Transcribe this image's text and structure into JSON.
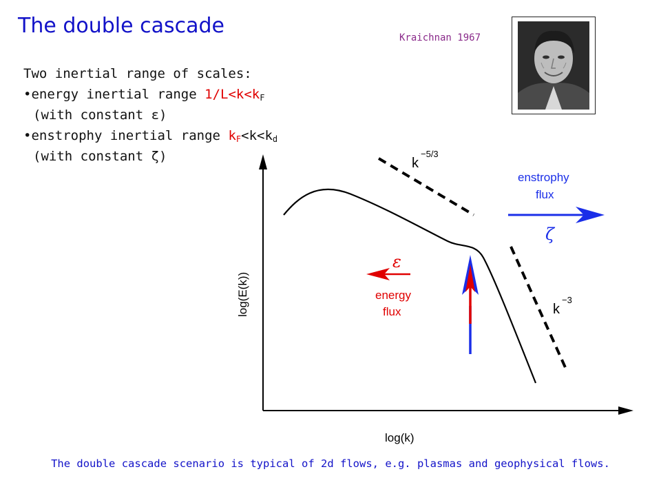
{
  "title": "The double cascade",
  "credit": "Kraichnan 1967",
  "intro": "Two inertial range of scales:",
  "energy_range": {
    "bullet": "•",
    "text": "energy inertial range ",
    "range_prefix": "1/L<k<k",
    "range_sub": "F",
    "constant_open": "(with constant ",
    "constant_symbol": "ε",
    "constant_close": ")"
  },
  "enstrophy_range": {
    "bullet": "•",
    "text": "enstrophy inertial range ",
    "k1": "k",
    "k1_sub": "F",
    "mid": "<k<k",
    "k2_sub": "d",
    "constant_open": "(with constant ",
    "constant_symbol": "ζ",
    "constant_close": ")"
  },
  "diagram": {
    "y_axis_label": "log(E(k))",
    "x_axis_label": "log(k)",
    "slope_53": {
      "base": "k",
      "exponent": "−5/3"
    },
    "slope_3": {
      "base": "k",
      "exponent": "−3"
    },
    "enstrophy_flux": {
      "line1": "enstrophy",
      "line2": "flux",
      "symbol": "ζ"
    },
    "energy_flux": {
      "line1": "energy",
      "line2": "flux",
      "symbol": "ε"
    },
    "colors": {
      "energy": "#e00000",
      "enstrophy": "#1a2ee8",
      "curve": "#000000"
    }
  },
  "footer": "The double cascade scenario is typical of 2d flows, e.g. plasmas and geophysical flows."
}
